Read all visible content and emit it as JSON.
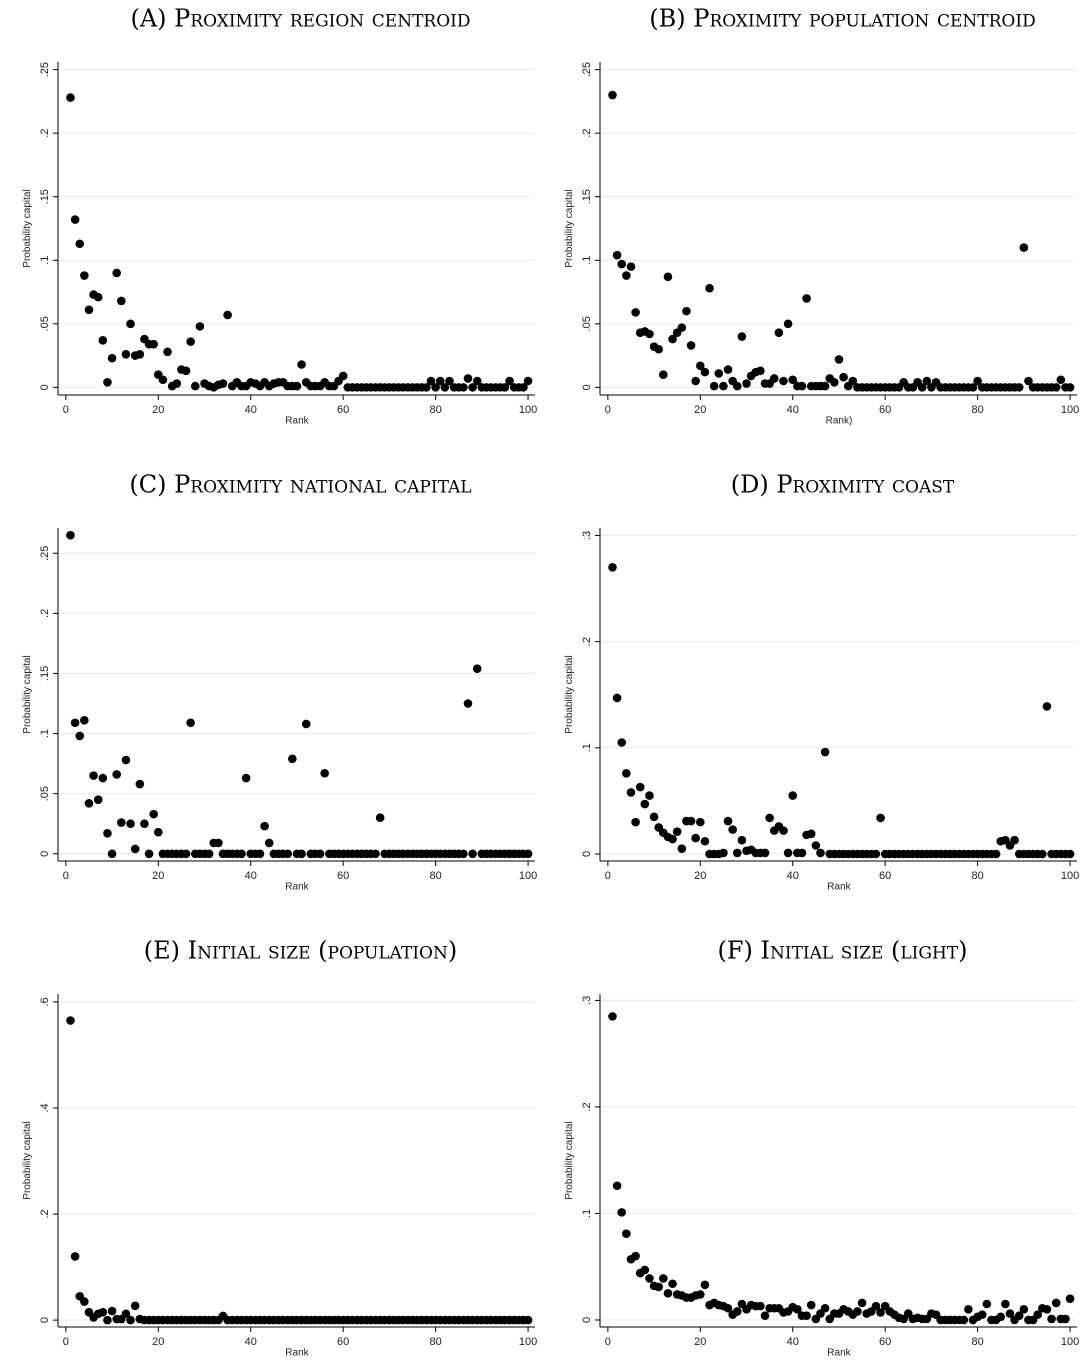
{
  "chart_data": [
    {
      "type": "scatter",
      "title": "(A) Proximity region centroid",
      "x_label": "Rank",
      "y_label": "Probability capital",
      "color": "#000000",
      "grid": true,
      "x": [
        1,
        2,
        3,
        4,
        5,
        6,
        7,
        8,
        9,
        10,
        11,
        12,
        13,
        14,
        15,
        16,
        17,
        18,
        19,
        20,
        21,
        22,
        23,
        24,
        25,
        26,
        27,
        28,
        29,
        30,
        31,
        32,
        33,
        34,
        35,
        36,
        37,
        38,
        39,
        40,
        41,
        42,
        43,
        44,
        45,
        46,
        47,
        48,
        49,
        50,
        51,
        52,
        53,
        54,
        55,
        56,
        57,
        58,
        59,
        60,
        61,
        62,
        63,
        64,
        65,
        66,
        67,
        68,
        69,
        70,
        71,
        72,
        73,
        74,
        75,
        76,
        77,
        78,
        79,
        80,
        81,
        82,
        83,
        84,
        85,
        86,
        87,
        88,
        89,
        90,
        91,
        92,
        93,
        94,
        95,
        96,
        97,
        98,
        99,
        100
      ],
      "values": [
        0.228,
        0.132,
        0.113,
        0.088,
        0.061,
        0.073,
        0.071,
        0.037,
        0.004,
        0.023,
        0.09,
        0.068,
        0.026,
        0.05,
        0.025,
        0.026,
        0.038,
        0.034,
        0.034,
        0.01,
        0.006,
        0.028,
        0.001,
        0.003,
        0.014,
        0.013,
        0.036,
        0.001,
        0.048,
        0.003,
        0.001,
        0,
        0.002,
        0.003,
        0.057,
        0.001,
        0.004,
        0.001,
        0.001,
        0.004,
        0.003,
        0.001,
        0.004,
        0.001,
        0.003,
        0.004,
        0.004,
        0.001,
        0.001,
        0.001,
        0.018,
        0.004,
        0.001,
        0.001,
        0.001,
        0.004,
        0.001,
        0.001,
        0.005,
        0.009,
        0,
        0,
        0,
        0,
        0,
        0,
        0,
        0,
        0,
        0,
        0,
        0,
        0,
        0,
        0,
        0,
        0,
        0,
        0.005,
        0,
        0.005,
        0,
        0.005,
        0,
        0,
        0,
        0.007,
        0,
        0.005,
        0,
        0,
        0,
        0,
        0,
        0,
        0.005,
        0,
        0,
        0,
        0.005
      ],
      "xlim": [
        -1.7,
        101.5
      ],
      "ylim": [
        -0.006,
        0.256
      ],
      "xticks": [
        0,
        20,
        40,
        60,
        80,
        100
      ],
      "yticks": [
        0,
        {
          "value": 0.05,
          "label": ".05"
        },
        {
          "value": 0.1,
          "label": ".1"
        },
        {
          "value": 0.15,
          "label": ".15"
        },
        {
          "value": 0.2,
          "label": ".2"
        },
        {
          "value": 0.25,
          "label": ".25"
        }
      ]
    },
    {
      "type": "scatter",
      "title": "(B) Proximity population centroid",
      "x_label": "Rank)",
      "y_label": "Probability capital",
      "color": "#000000",
      "grid": true,
      "x": [
        1,
        2,
        3,
        4,
        5,
        6,
        7,
        8,
        9,
        10,
        11,
        12,
        13,
        14,
        15,
        16,
        17,
        18,
        19,
        20,
        21,
        22,
        23,
        24,
        25,
        26,
        27,
        28,
        29,
        30,
        31,
        32,
        33,
        34,
        35,
        36,
        37,
        38,
        39,
        40,
        41,
        42,
        43,
        44,
        45,
        46,
        47,
        48,
        49,
        50,
        51,
        52,
        53,
        54,
        55,
        56,
        57,
        58,
        59,
        60,
        61,
        62,
        63,
        64,
        65,
        66,
        67,
        68,
        69,
        70,
        71,
        72,
        73,
        74,
        75,
        76,
        77,
        78,
        79,
        80,
        81,
        82,
        83,
        84,
        85,
        86,
        87,
        88,
        89,
        90,
        91,
        92,
        93,
        94,
        95,
        96,
        97,
        98,
        99,
        100
      ],
      "values": [
        0.23,
        0.104,
        0.097,
        0.088,
        0.095,
        0.059,
        0.043,
        0.044,
        0.042,
        0.032,
        0.03,
        0.01,
        0.087,
        0.038,
        0.043,
        0.047,
        0.06,
        0.033,
        0.005,
        0.017,
        0.012,
        0.078,
        0.001,
        0.011,
        0.001,
        0.014,
        0.005,
        0.001,
        0.04,
        0.003,
        0.009,
        0.012,
        0.013,
        0.003,
        0.003,
        0.007,
        0.043,
        0.005,
        0.05,
        0.006,
        0.001,
        0.001,
        0.07,
        0.001,
        0.001,
        0.001,
        0.001,
        0.007,
        0.004,
        0.022,
        0.008,
        0.001,
        0.005,
        0,
        0,
        0,
        0,
        0,
        0,
        0,
        0,
        0,
        0,
        0.004,
        0,
        0,
        0.004,
        0,
        0.005,
        0,
        0.004,
        0,
        0,
        0,
        0,
        0,
        0,
        0,
        0,
        0.005,
        0,
        0,
        0,
        0,
        0,
        0,
        0,
        0,
        0,
        0.11,
        0.005,
        0,
        0,
        0,
        0,
        0,
        0,
        0.006,
        0,
        0
      ],
      "xlim": [
        -1.7,
        101.5
      ],
      "ylim": [
        -0.006,
        0.256
      ],
      "xticks": [
        0,
        20,
        40,
        60,
        80,
        100
      ],
      "yticks": [
        0,
        {
          "value": 0.05,
          "label": ".05"
        },
        {
          "value": 0.1,
          "label": ".1"
        },
        {
          "value": 0.15,
          "label": ".15"
        },
        {
          "value": 0.2,
          "label": ".2"
        },
        {
          "value": 0.25,
          "label": ".25"
        }
      ]
    },
    {
      "type": "scatter",
      "title": "(C) Proximity national capital",
      "x_label": "Rank",
      "y_label": "Probability capital",
      "color": "#000000",
      "grid": true,
      "x": [
        1,
        2,
        3,
        4,
        5,
        6,
        7,
        8,
        9,
        10,
        11,
        12,
        13,
        14,
        15,
        16,
        17,
        18,
        19,
        20,
        21,
        22,
        23,
        24,
        25,
        26,
        27,
        28,
        29,
        30,
        31,
        32,
        33,
        34,
        35,
        36,
        37,
        38,
        39,
        40,
        41,
        42,
        43,
        44,
        45,
        46,
        47,
        48,
        49,
        50,
        51,
        52,
        53,
        54,
        55,
        56,
        57,
        58,
        59,
        60,
        61,
        62,
        63,
        64,
        65,
        66,
        67,
        68,
        69,
        70,
        71,
        72,
        73,
        74,
        75,
        76,
        77,
        78,
        79,
        80,
        81,
        82,
        83,
        84,
        85,
        86,
        87,
        88,
        89,
        90,
        91,
        92,
        93,
        94,
        95,
        96,
        97,
        98,
        99,
        100
      ],
      "values": [
        0.265,
        0.109,
        0.098,
        0.111,
        0.042,
        0.065,
        0.045,
        0.063,
        0.017,
        0,
        0.066,
        0.026,
        0.078,
        0.025,
        0.004,
        0.058,
        0.025,
        0,
        0.033,
        0.018,
        0,
        0,
        0,
        0,
        0,
        0,
        0.109,
        0,
        0,
        0,
        0,
        0.009,
        0.009,
        0,
        0,
        0,
        0,
        0,
        0.063,
        0,
        0,
        0,
        0.023,
        0.009,
        0,
        0,
        0,
        0,
        0.079,
        0,
        0,
        0.108,
        0,
        0,
        0,
        0.067,
        0,
        0,
        0,
        0,
        0,
        0,
        0,
        0,
        0,
        0,
        0,
        0.03,
        0,
        0,
        0,
        0,
        0,
        0,
        0,
        0,
        0,
        0,
        0,
        0,
        0,
        0,
        0,
        0,
        0,
        0,
        0.125,
        0,
        0.154,
        0,
        0,
        0,
        0,
        0,
        0,
        0,
        0,
        0,
        0,
        0
      ],
      "xlim": [
        -1.7,
        101.5
      ],
      "ylim": [
        -0.006,
        0.271
      ],
      "xticks": [
        0,
        20,
        40,
        60,
        80,
        100
      ],
      "yticks": [
        0,
        {
          "value": 0.05,
          "label": ".05"
        },
        {
          "value": 0.1,
          "label": ".1"
        },
        {
          "value": 0.15,
          "label": ".15"
        },
        {
          "value": 0.2,
          "label": ".2"
        },
        {
          "value": 0.25,
          "label": ".25"
        }
      ]
    },
    {
      "type": "scatter",
      "title": "(D) Proximity coast",
      "x_label": "Rank",
      "y_label": "Probability capital",
      "color": "#000000",
      "grid": true,
      "x": [
        1,
        2,
        3,
        4,
        5,
        6,
        7,
        8,
        9,
        10,
        11,
        12,
        13,
        14,
        15,
        16,
        17,
        18,
        19,
        20,
        21,
        22,
        23,
        24,
        25,
        26,
        27,
        28,
        29,
        30,
        31,
        32,
        33,
        34,
        35,
        36,
        37,
        38,
        39,
        40,
        41,
        42,
        43,
        44,
        45,
        46,
        47,
        48,
        49,
        50,
        51,
        52,
        53,
        54,
        55,
        56,
        57,
        58,
        59,
        60,
        61,
        62,
        63,
        64,
        65,
        66,
        67,
        68,
        69,
        70,
        71,
        72,
        73,
        74,
        75,
        76,
        77,
        78,
        79,
        80,
        81,
        82,
        83,
        84,
        85,
        86,
        87,
        88,
        89,
        90,
        91,
        92,
        93,
        94,
        95,
        96,
        97,
        98,
        99,
        100
      ],
      "values": [
        0.27,
        0.147,
        0.105,
        0.076,
        0.058,
        0.03,
        0.063,
        0.047,
        0.055,
        0.035,
        0.025,
        0.02,
        0.016,
        0.014,
        0.021,
        0.005,
        0.031,
        0.031,
        0.015,
        0.03,
        0.012,
        0,
        0,
        0,
        0.001,
        0.031,
        0.023,
        0.001,
        0.013,
        0.003,
        0.004,
        0.001,
        0.001,
        0.001,
        0.034,
        0.022,
        0.026,
        0.022,
        0.001,
        0.055,
        0.001,
        0.001,
        0.018,
        0.019,
        0.008,
        0.001,
        0.096,
        0,
        0,
        0,
        0,
        0,
        0,
        0,
        0,
        0,
        0,
        0,
        0.034,
        0,
        0,
        0,
        0,
        0,
        0,
        0,
        0,
        0,
        0,
        0,
        0,
        0,
        0,
        0,
        0,
        0,
        0,
        0,
        0,
        0,
        0,
        0,
        0,
        0,
        0.012,
        0.013,
        0.008,
        0.013,
        0,
        0,
        0,
        0,
        0,
        0,
        0.139,
        0,
        0,
        0,
        0,
        0
      ],
      "xlim": [
        -1.7,
        101.5
      ],
      "ylim": [
        -0.0066,
        0.307
      ],
      "xticks": [
        0,
        20,
        40,
        60,
        80,
        100
      ],
      "yticks": [
        0,
        {
          "value": 0.1,
          "label": ".1"
        },
        {
          "value": 0.2,
          "label": ".2"
        },
        {
          "value": 0.3,
          "label": ".3"
        }
      ]
    },
    {
      "type": "scatter",
      "title": "(E) Initial size (population)",
      "x_label": "Rank",
      "y_label": "Probability capital",
      "color": "#000000",
      "grid": true,
      "x": [
        1,
        2,
        3,
        4,
        5,
        6,
        7,
        8,
        9,
        10,
        11,
        12,
        13,
        14,
        15,
        16,
        17,
        18,
        19,
        20,
        21,
        22,
        23,
        24,
        25,
        26,
        27,
        28,
        29,
        30,
        31,
        32,
        33,
        34,
        35,
        36,
        37,
        38,
        39,
        40,
        41,
        42,
        43,
        44,
        45,
        46,
        47,
        48,
        49,
        50,
        51,
        52,
        53,
        54,
        55,
        56,
        57,
        58,
        59,
        60,
        61,
        62,
        63,
        64,
        65,
        66,
        67,
        68,
        69,
        70,
        71,
        72,
        73,
        74,
        75,
        76,
        77,
        78,
        79,
        80,
        81,
        82,
        83,
        84,
        85,
        86,
        87,
        88,
        89,
        90,
        91,
        92,
        93,
        94,
        95,
        96,
        97,
        98,
        99,
        100
      ],
      "values": [
        0.565,
        0.12,
        0.045,
        0.035,
        0.015,
        0.005,
        0.012,
        0.015,
        0,
        0.017,
        0.002,
        0.002,
        0.012,
        0,
        0.027,
        0.002,
        0,
        0,
        0,
        0,
        0,
        0,
        0,
        0,
        0,
        0,
        0,
        0,
        0,
        0,
        0,
        0,
        0,
        0.008,
        0,
        0,
        0,
        0,
        0,
        0,
        0,
        0,
        0,
        0,
        0,
        0,
        0,
        0,
        0,
        0,
        0,
        0,
        0,
        0,
        0,
        0,
        0,
        0,
        0,
        0,
        0,
        0,
        0,
        0,
        0,
        0,
        0,
        0,
        0,
        0,
        0,
        0,
        0,
        0,
        0,
        0,
        0,
        0,
        0,
        0,
        0,
        0,
        0,
        0,
        0,
        0,
        0,
        0,
        0,
        0,
        0,
        0,
        0,
        0,
        0,
        0,
        0,
        0,
        0,
        0
      ],
      "xlim": [
        -1.7,
        101.5
      ],
      "ylim": [
        -0.013,
        0.615
      ],
      "xticks": [
        0,
        20,
        40,
        60,
        80,
        100
      ],
      "yticks": [
        0,
        {
          "value": 0.2,
          "label": ".2"
        },
        {
          "value": 0.4,
          "label": ".4"
        },
        {
          "value": 0.6,
          "label": ".6"
        }
      ]
    },
    {
      "type": "scatter",
      "title": "(F) Initial size (light)",
      "x_label": "Rank",
      "y_label": "Probability capital",
      "color": "#000000",
      "grid": true,
      "x": [
        1,
        2,
        3,
        4,
        5,
        6,
        7,
        8,
        9,
        10,
        11,
        12,
        13,
        14,
        15,
        16,
        17,
        18,
        19,
        20,
        21,
        22,
        23,
        24,
        25,
        26,
        27,
        28,
        29,
        30,
        31,
        32,
        33,
        34,
        35,
        36,
        37,
        38,
        39,
        40,
        41,
        42,
        43,
        44,
        45,
        46,
        47,
        48,
        49,
        50,
        51,
        52,
        53,
        54,
        55,
        56,
        57,
        58,
        59,
        60,
        61,
        62,
        63,
        64,
        65,
        66,
        67,
        68,
        69,
        70,
        71,
        72,
        73,
        74,
        75,
        76,
        77,
        78,
        79,
        80,
        81,
        82,
        83,
        84,
        85,
        86,
        87,
        88,
        89,
        90,
        91,
        92,
        93,
        94,
        95,
        96,
        97,
        98,
        99,
        100
      ],
      "values": [
        0.285,
        0.126,
        0.101,
        0.081,
        0.057,
        0.06,
        0.044,
        0.047,
        0.039,
        0.032,
        0.031,
        0.039,
        0.025,
        0.034,
        0.024,
        0.023,
        0.021,
        0.021,
        0.023,
        0.024,
        0.033,
        0.014,
        0.016,
        0.014,
        0.013,
        0.011,
        0.005,
        0.008,
        0.015,
        0.01,
        0.014,
        0.013,
        0.013,
        0.004,
        0.011,
        0.011,
        0.011,
        0.007,
        0.008,
        0.012,
        0.01,
        0.004,
        0.004,
        0.014,
        0.001,
        0.006,
        0.011,
        0.001,
        0.006,
        0.006,
        0.01,
        0.008,
        0.005,
        0.008,
        0.016,
        0.006,
        0.008,
        0.013,
        0.007,
        0.013,
        0.008,
        0.005,
        0.002,
        0.001,
        0.006,
        0.001,
        0.002,
        0.001,
        0.001,
        0.006,
        0.005,
        0,
        0,
        0,
        0,
        0,
        0,
        0.01,
        0,
        0.003,
        0.005,
        0.015,
        0,
        0,
        0.003,
        0.015,
        0.006,
        0,
        0.004,
        0.01,
        0,
        0,
        0.005,
        0.011,
        0.01,
        0.001,
        0.016,
        0.001,
        0.001,
        0.02
      ],
      "xlim": [
        -1.7,
        101.5
      ],
      "ylim": [
        -0.0066,
        0.306
      ],
      "xticks": [
        0,
        20,
        40,
        60,
        80,
        100
      ],
      "yticks": [
        0,
        {
          "value": 0.1,
          "label": ".1"
        },
        {
          "value": 0.2,
          "label": ".2"
        },
        {
          "value": 0.3,
          "label": ".3"
        }
      ]
    }
  ]
}
